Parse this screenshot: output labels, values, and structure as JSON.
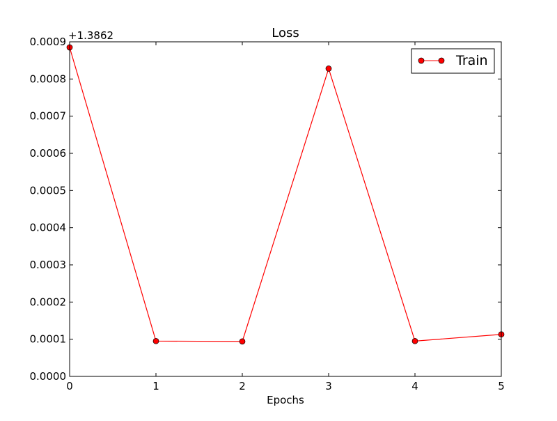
{
  "chart_data": {
    "type": "line",
    "title": "Loss",
    "xlabel": "Epochs",
    "ylabel": "",
    "y_offset_label": "+1.3862",
    "x": [
      0,
      1,
      2,
      3,
      4,
      5
    ],
    "xlim": [
      0,
      5
    ],
    "ylim": [
      0.0,
      0.0009
    ],
    "x_ticks": [
      "0",
      "1",
      "2",
      "3",
      "4",
      "5"
    ],
    "y_ticks": [
      "0.0000",
      "0.0001",
      "0.0002",
      "0.0003",
      "0.0004",
      "0.0005",
      "0.0006",
      "0.0007",
      "0.0008",
      "0.0009"
    ],
    "y_tick_values": [
      0.0,
      0.0001,
      0.0002,
      0.0003,
      0.0004,
      0.0005,
      0.0006,
      0.0007,
      0.0008,
      0.0009
    ],
    "grid": false,
    "legend_position": "top-right",
    "series": [
      {
        "name": "Train",
        "color": "#ff0000",
        "marker": "circle",
        "values": [
          0.000885,
          9.5e-05,
          9.4e-05,
          0.000828,
          9.5e-05,
          0.000113
        ]
      }
    ]
  }
}
